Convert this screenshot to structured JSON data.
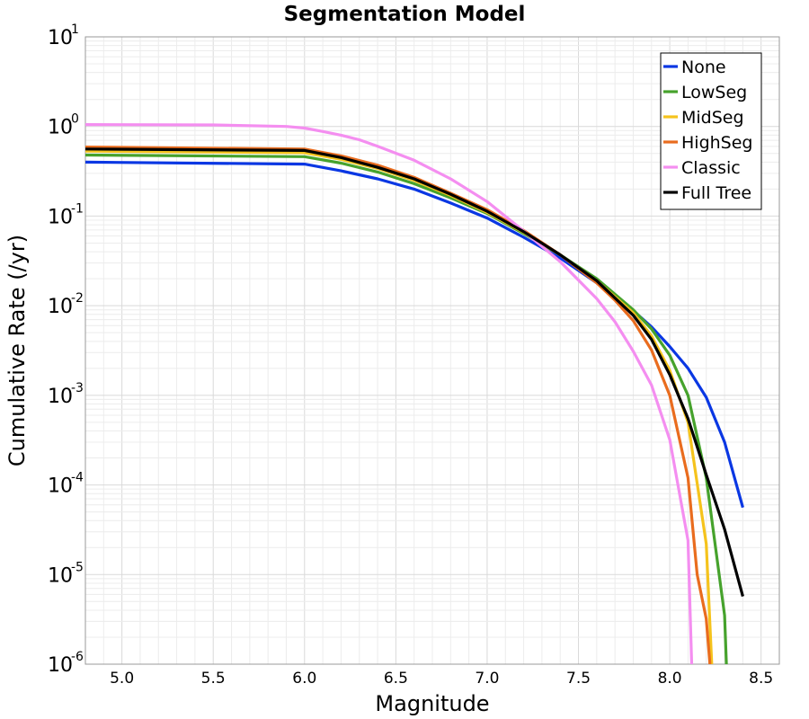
{
  "chart_data": {
    "type": "line",
    "title": "Segmentation Model",
    "xlabel": "Magnitude",
    "ylabel": "Cumulative Rate (/yr)",
    "xlim": [
      4.8,
      8.6
    ],
    "ylim": [
      1e-06,
      10
    ],
    "yscale": "log",
    "grid": true,
    "legend_position": "top-right",
    "xticks": [
      5.0,
      5.5,
      6.0,
      6.5,
      7.0,
      7.5,
      8.0,
      8.5
    ],
    "xtick_labels": [
      "5.0",
      "5.5",
      "6.0",
      "6.5",
      "7.0",
      "7.5",
      "8.0",
      "8.5"
    ],
    "yticks": [
      {
        "value": 10,
        "base": "10",
        "exp": "1"
      },
      {
        "value": 1,
        "base": "10",
        "exp": "0"
      },
      {
        "value": 0.1,
        "base": "10",
        "exp": "-1"
      },
      {
        "value": 0.01,
        "base": "10",
        "exp": "-2"
      },
      {
        "value": 0.001,
        "base": "10",
        "exp": "-3"
      },
      {
        "value": 0.0001,
        "base": "10",
        "exp": "-4"
      },
      {
        "value": 1e-05,
        "base": "10",
        "exp": "-5"
      },
      {
        "value": 1e-06,
        "base": "10",
        "exp": "-6"
      }
    ],
    "series": [
      {
        "name": "None",
        "color": "#0a37e3",
        "x": [
          4.8,
          6.0,
          6.2,
          6.4,
          6.6,
          6.8,
          7.0,
          7.2,
          7.4,
          7.6,
          7.8,
          7.9,
          8.0,
          8.1,
          8.2,
          8.3,
          8.4
        ],
        "y": [
          0.4,
          0.38,
          0.32,
          0.26,
          0.2,
          0.14,
          0.095,
          0.058,
          0.034,
          0.018,
          0.0088,
          0.0058,
          0.0035,
          0.002,
          0.00095,
          0.0003,
          5.6e-05
        ]
      },
      {
        "name": "LowSeg",
        "color": "#46a22c",
        "x": [
          4.8,
          6.0,
          6.2,
          6.4,
          6.6,
          6.8,
          7.0,
          7.2,
          7.4,
          7.6,
          7.8,
          7.9,
          8.0,
          8.1,
          8.2,
          8.3,
          8.31
        ],
        "y": [
          0.48,
          0.46,
          0.39,
          0.31,
          0.23,
          0.16,
          0.107,
          0.064,
          0.037,
          0.02,
          0.009,
          0.0055,
          0.0028,
          0.001,
          0.00012,
          3.5e-06,
          1e-06
        ]
      },
      {
        "name": "MidSeg",
        "color": "#f5c31c",
        "x": [
          4.8,
          6.0,
          6.2,
          6.4,
          6.6,
          6.8,
          7.0,
          7.2,
          7.4,
          7.6,
          7.8,
          7.9,
          8.0,
          8.1,
          8.2,
          8.23
        ],
        "y": [
          0.53,
          0.51,
          0.43,
          0.34,
          0.25,
          0.17,
          0.11,
          0.066,
          0.037,
          0.019,
          0.0083,
          0.0046,
          0.0019,
          0.0005,
          2.2e-05,
          1e-06
        ]
      },
      {
        "name": "HighSeg",
        "color": "#e96c1e",
        "x": [
          4.8,
          6.0,
          6.2,
          6.4,
          6.6,
          6.8,
          7.0,
          7.2,
          7.4,
          7.6,
          7.7,
          7.8,
          7.9,
          8.0,
          8.1,
          8.15,
          8.2,
          8.22
        ],
        "y": [
          0.59,
          0.56,
          0.47,
          0.37,
          0.27,
          0.18,
          0.118,
          0.069,
          0.037,
          0.018,
          0.0115,
          0.0068,
          0.0032,
          0.001,
          0.00012,
          1e-05,
          3.2e-06,
          1e-06
        ]
      },
      {
        "name": "Classic",
        "color": "#f48ef0",
        "x": [
          4.8,
          5.5,
          5.9,
          6.0,
          6.1,
          6.2,
          6.3,
          6.4,
          6.6,
          6.8,
          7.0,
          7.2,
          7.4,
          7.6,
          7.7,
          7.8,
          7.9,
          8.0,
          8.1,
          8.12
        ],
        "y": [
          1.05,
          1.04,
          1.0,
          0.96,
          0.88,
          0.8,
          0.71,
          0.6,
          0.42,
          0.26,
          0.145,
          0.068,
          0.031,
          0.012,
          0.0066,
          0.0031,
          0.0013,
          0.00032,
          2.4e-05,
          1e-06
        ]
      },
      {
        "name": "Full Tree",
        "color": "#000000",
        "x": [
          4.8,
          6.0,
          6.2,
          6.4,
          6.6,
          6.8,
          7.0,
          7.2,
          7.4,
          7.6,
          7.8,
          7.9,
          8.0,
          8.1,
          8.2,
          8.3,
          8.4
        ],
        "y": [
          0.56,
          0.54,
          0.45,
          0.35,
          0.26,
          0.175,
          0.113,
          0.067,
          0.037,
          0.019,
          0.0078,
          0.0042,
          0.0017,
          0.00055,
          0.00013,
          3.2e-05,
          5.7e-06
        ]
      }
    ]
  }
}
